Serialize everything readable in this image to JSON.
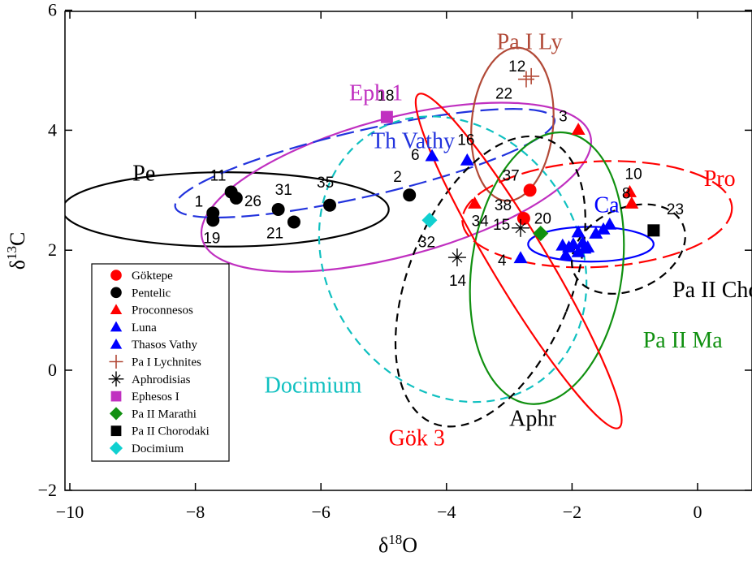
{
  "chart_data": {
    "type": "scatter",
    "xlabel": "δ18O",
    "ylabel": "δ13C",
    "xlim": [
      -10,
      0.9
    ],
    "ylim": [
      -2,
      6
    ],
    "xticks": [
      -10,
      -8,
      -6,
      -4,
      -2,
      0
    ],
    "yticks": [
      -2,
      0,
      2,
      4,
      6
    ],
    "series": [
      {
        "name": "Göktepe",
        "marker": "circle",
        "color": "#ff0000",
        "points": [
          {
            "x": -2.67,
            "y": 3.0,
            "label": "37"
          },
          {
            "x": -2.77,
            "y": 2.53,
            "label": "38"
          }
        ]
      },
      {
        "name": "Pentelic",
        "marker": "circle",
        "color": "#000000",
        "points": [
          {
            "x": -7.72,
            "y": 2.62,
            "label": "1"
          },
          {
            "x": -7.72,
            "y": 2.5,
            "label": "19"
          },
          {
            "x": -7.43,
            "y": 2.97,
            "label": "11"
          },
          {
            "x": -7.35,
            "y": 2.87,
            "label": "26"
          },
          {
            "x": -6.68,
            "y": 2.68,
            "label": "31"
          },
          {
            "x": -6.43,
            "y": 2.47,
            "label": "21"
          },
          {
            "x": -5.86,
            "y": 2.75,
            "label": "35"
          },
          {
            "x": -4.59,
            "y": 2.92,
            "label": "2"
          }
        ]
      },
      {
        "name": "Proconnesos",
        "marker": "triangle",
        "color": "#ff0000",
        "points": [
          {
            "x": -1.9,
            "y": 4.01,
            "label": "3"
          },
          {
            "x": -3.55,
            "y": 2.78,
            "label": "34"
          },
          {
            "x": -1.08,
            "y": 2.97,
            "label": "10"
          },
          {
            "x": -1.05,
            "y": 2.78,
            "label": "8"
          }
        ]
      },
      {
        "name": "Luna",
        "marker": "triangle",
        "color": "#0000ff",
        "points": [
          {
            "x": -2.82,
            "y": 1.87,
            "label": "4"
          },
          {
            "x": -2.15,
            "y": 2.08
          },
          {
            "x": -2.05,
            "y": 2.05
          },
          {
            "x": -1.98,
            "y": 2.1
          },
          {
            "x": -1.9,
            "y": 2.3
          },
          {
            "x": -1.83,
            "y": 2.13
          },
          {
            "x": -1.75,
            "y": 2.05
          },
          {
            "x": -1.62,
            "y": 2.28
          },
          {
            "x": -1.5,
            "y": 2.35
          },
          {
            "x": -1.4,
            "y": 2.43
          },
          {
            "x": -2.1,
            "y": 1.92
          },
          {
            "x": -1.9,
            "y": 1.97
          },
          {
            "x": -1.8,
            "y": 2.03
          }
        ]
      },
      {
        "name": "Thasos Vathy",
        "marker": "triangle",
        "color": "#0000ff",
        "points": [
          {
            "x": -4.23,
            "y": 3.57,
            "label": "6"
          },
          {
            "x": -3.67,
            "y": 3.5,
            "label": "16"
          }
        ]
      },
      {
        "name": "Pa I Lychnites",
        "marker": "plus",
        "color": "#b24a38",
        "points": [
          {
            "x": -2.65,
            "y": 4.9,
            "label": "12"
          },
          {
            "x": -2.73,
            "y": 4.85,
            "label": "22"
          }
        ]
      },
      {
        "name": "Aphrodisias",
        "marker": "star",
        "color": "#000000",
        "points": [
          {
            "x": -3.83,
            "y": 1.88,
            "label": "14"
          },
          {
            "x": -2.82,
            "y": 2.37,
            "label": "15"
          }
        ]
      },
      {
        "name": "Ephesos I",
        "marker": "square",
        "color": "#c030c0",
        "points": [
          {
            "x": -4.95,
            "y": 4.22,
            "label": "18"
          }
        ]
      },
      {
        "name": "Pa II Marathi",
        "marker": "diamond",
        "color": "#109010",
        "points": [
          {
            "x": -2.5,
            "y": 2.28,
            "label": "20"
          }
        ]
      },
      {
        "name": "Pa II Chorodaki",
        "marker": "square",
        "color": "#000000",
        "points": [
          {
            "x": -0.7,
            "y": 2.33,
            "label": "23"
          }
        ]
      },
      {
        "name": "Docimium",
        "marker": "diamond",
        "color": "#10d0d0",
        "points": [
          {
            "x": -4.27,
            "y": 2.5,
            "label": "32"
          }
        ]
      }
    ],
    "regions": [
      {
        "name": "Pe",
        "color": "#000000",
        "dash": "solid",
        "cx": -7.52,
        "cy": 2.68,
        "rx": 2.6,
        "ry": 0.62,
        "rot": 0
      },
      {
        "name": "Eph 1",
        "color": "#c030c0",
        "dash": "solid",
        "cx": -4.8,
        "cy": 3.05,
        "rx": 3.2,
        "ry": 1.15,
        "rot": -15
      },
      {
        "name": "Th Vathy",
        "color": "#2233dd",
        "dash": "longdash",
        "cx": -5.3,
        "cy": 3.45,
        "rx": 3.1,
        "ry": 0.55,
        "rot": -13
      },
      {
        "name": "Docimium",
        "color": "#10c0c0",
        "dash": "dash",
        "cx": -3.9,
        "cy": 1.85,
        "rx": 2.0,
        "ry": 2.5,
        "rot": -34
      },
      {
        "name": "Pa I Ly",
        "color": "#b24a38",
        "dash": "solid",
        "cx": -2.95,
        "cy": 4.1,
        "rx": 0.65,
        "ry": 1.28,
        "rot": 5
      },
      {
        "name": "Pro",
        "color": "#ff0000",
        "dash": "longdash",
        "cx": -1.6,
        "cy": 2.6,
        "rx": 2.15,
        "ry": 0.88,
        "rot": -3
      },
      {
        "name": "Ca",
        "color": "#0000ff",
        "dash": "solid",
        "cx": -1.7,
        "cy": 2.1,
        "rx": 1.0,
        "ry": 0.29,
        "rot": 0
      },
      {
        "name": "Pa II Ma",
        "color": "#109010",
        "dash": "solid",
        "cx": -2.4,
        "cy": 1.7,
        "rx": 1.2,
        "ry": 2.28,
        "rot": 8
      },
      {
        "name": "Pa II Cho",
        "color": "#000000",
        "dash": "dash",
        "cx": -1.1,
        "cy": 2.02,
        "rx": 0.95,
        "ry": 0.68,
        "rot": -25
      },
      {
        "name": "Aphr",
        "color": "#000000",
        "dash": "dash",
        "cx": -3.3,
        "cy": 1.48,
        "rx": 1.3,
        "ry": 2.55,
        "rot": 22
      },
      {
        "name": "Gök 3",
        "color": "#ff0000",
        "dash": "solid",
        "cx": -2.85,
        "cy": 1.82,
        "rx": 3.1,
        "ry": 0.46,
        "rot": 59
      }
    ],
    "region_labels": [
      {
        "text": "Pe",
        "color": "#000000",
        "x": -9.0,
        "y": 3.16
      },
      {
        "text": "Eph 1",
        "color": "#c030c0",
        "x": -5.55,
        "y": 4.5
      },
      {
        "text": "Th Vathy",
        "color": "#2233dd",
        "x": -5.2,
        "y": 3.7
      },
      {
        "text": "Pa I Ly",
        "color": "#b24a38",
        "x": -3.2,
        "y": 5.35
      },
      {
        "text": "Pro",
        "color": "#ff0000",
        "x": 0.1,
        "y": 3.07
      },
      {
        "text": "Ca",
        "color": "#0000ff",
        "x": -1.65,
        "y": 2.63
      },
      {
        "text": "Pa II Cho",
        "color": "#000000",
        "x": -0.4,
        "y": 1.22
      },
      {
        "text": "Pa II Ma",
        "color": "#109010",
        "x": -0.87,
        "y": 0.38
      },
      {
        "text": "Docimium",
        "color": "#10c0c0",
        "x": -6.9,
        "y": -0.37
      },
      {
        "text": "Aphr",
        "color": "#000000",
        "x": -3.0,
        "y": -0.93
      },
      {
        "text": "Gök 3",
        "color": "#ff0000",
        "x": -4.92,
        "y": -1.25
      }
    ],
    "legend": {
      "position": "bottom-left",
      "entries": [
        {
          "label": "Göktepe",
          "marker": "circle",
          "color": "#ff0000"
        },
        {
          "label": "Pentelic",
          "marker": "circle",
          "color": "#000000"
        },
        {
          "label": "Proconnesos",
          "marker": "triangle",
          "color": "#ff0000"
        },
        {
          "label": "Luna",
          "marker": "triangle",
          "color": "#0000ff"
        },
        {
          "label": "Thasos Vathy",
          "marker": "triangle",
          "color": "#0000ff"
        },
        {
          "label": "Pa I Lychnites",
          "marker": "plus",
          "color": "#b24a38"
        },
        {
          "label": "Aphrodisias",
          "marker": "star",
          "color": "#000000"
        },
        {
          "label": "Ephesos I",
          "marker": "square",
          "color": "#c030c0"
        },
        {
          "label": "Pa II Marathi",
          "marker": "diamond",
          "color": "#109010"
        },
        {
          "label": "Pa II Chorodaki",
          "marker": "square",
          "color": "#000000"
        },
        {
          "label": "Docimium",
          "marker": "diamond",
          "color": "#10d0d0"
        }
      ]
    },
    "grid": false
  }
}
